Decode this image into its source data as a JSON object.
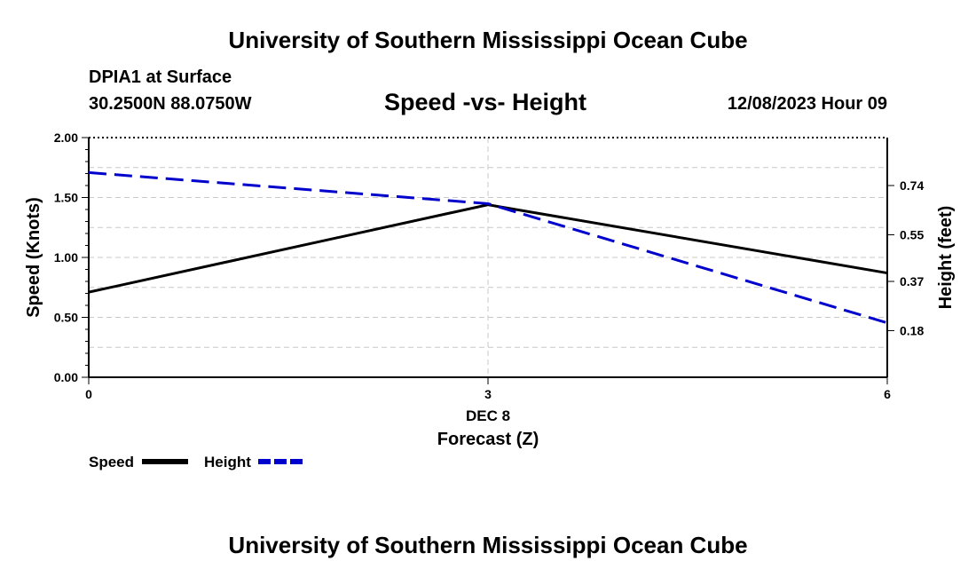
{
  "header": {
    "title_top": "University of Southern Mississippi Ocean Cube",
    "station": "DPIA1 at Surface",
    "coords": "30.2500N  88.0750W",
    "date": "12/08/2023 Hour 09"
  },
  "footer": {
    "title_bottom": "University of Southern Mississippi Ocean Cube"
  },
  "chart_data": {
    "type": "line",
    "title": "Speed -vs- Height",
    "xlabel": "Forecast (Z)",
    "x_sublabel": "DEC 8",
    "ylabel_left": "Speed (Knots)",
    "ylabel_right": "Height (feet)",
    "x": [
      0,
      3,
      6
    ],
    "x_ticks": [
      "0",
      "3",
      "6"
    ],
    "xlim": [
      0,
      6
    ],
    "ylim_left": [
      0,
      2.0
    ],
    "y_ticks_left": [
      "0.00",
      "0.50",
      "1.00",
      "1.50",
      "2.00"
    ],
    "ylim_right": [
      0,
      0.925
    ],
    "y_ticks_right": [
      "0.18",
      "0.37",
      "0.55",
      "0.74"
    ],
    "grid": true,
    "legend_position": "bottom-left",
    "series": [
      {
        "name": "Speed",
        "axis": "left",
        "values": [
          0.71,
          1.44,
          0.87
        ],
        "color": "#000000",
        "dash": "solid"
      },
      {
        "name": "Height",
        "axis": "right",
        "values": [
          0.79,
          0.67,
          0.21
        ],
        "color": "#0000cc",
        "dash": "dashed"
      }
    ]
  }
}
